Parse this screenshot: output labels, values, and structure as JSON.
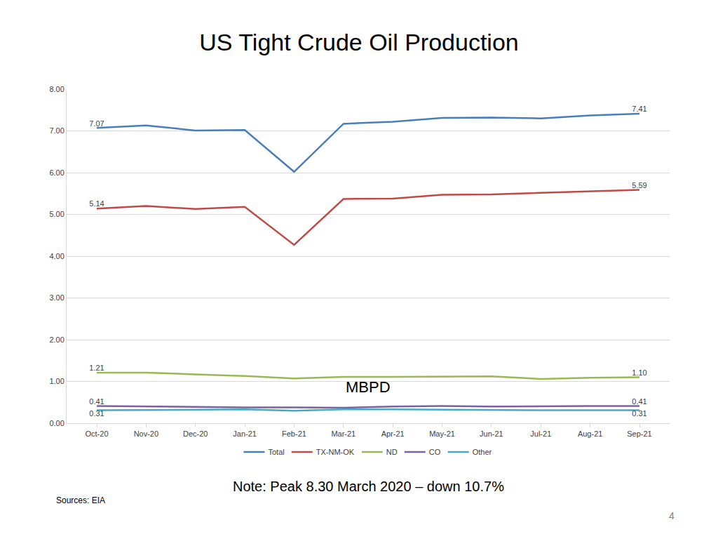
{
  "chart_data": {
    "type": "line",
    "title": "US Tight Crude Oil Production",
    "subtitle": "MBPD",
    "annotations": [
      "Note: Peak 8.30 March 2020 – down 10.7%",
      "Sources: EIA",
      "4"
    ],
    "categories": [
      "Oct-20",
      "Nov-20",
      "Dec-20",
      "Jan-21",
      "Feb-21",
      "Mar-21",
      "Apr-21",
      "May-21",
      "Jun-21",
      "Jul-21",
      "Aug-21",
      "Sep-21"
    ],
    "series": [
      {
        "name": "Total",
        "color": "#4a7ebb",
        "values": [
          7.07,
          7.13,
          7.01,
          7.02,
          6.02,
          7.17,
          7.22,
          7.31,
          7.32,
          7.3,
          7.37,
          7.41
        ],
        "value_labels": [
          "7.07",
          null,
          null,
          null,
          null,
          null,
          null,
          null,
          null,
          null,
          null,
          "7.41"
        ]
      },
      {
        "name": "TX-NM-OK",
        "color": "#be4b48",
        "values": [
          5.14,
          5.2,
          5.13,
          5.18,
          4.27,
          5.37,
          5.38,
          5.47,
          5.48,
          5.52,
          5.56,
          5.59
        ],
        "value_labels": [
          "5.14",
          null,
          null,
          null,
          null,
          null,
          null,
          null,
          null,
          null,
          null,
          "5.59"
        ]
      },
      {
        "name": "ND",
        "color": "#98b954",
        "values": [
          1.21,
          1.21,
          1.17,
          1.13,
          1.07,
          1.11,
          1.11,
          1.11,
          1.12,
          1.06,
          1.09,
          1.1
        ],
        "value_labels": [
          "1.21",
          null,
          null,
          null,
          null,
          null,
          null,
          null,
          null,
          null,
          null,
          "1.10"
        ]
      },
      {
        "name": "CO",
        "color": "#7d60a0",
        "values": [
          0.41,
          0.4,
          0.38,
          0.38,
          0.38,
          0.37,
          0.4,
          0.41,
          0.4,
          0.41,
          0.41,
          0.41
        ],
        "value_labels": [
          "0.41",
          null,
          null,
          null,
          null,
          null,
          null,
          null,
          null,
          null,
          null,
          "0.41"
        ]
      },
      {
        "name": "Other",
        "color": "#46aac5",
        "values": [
          0.31,
          0.32,
          0.33,
          0.33,
          0.3,
          0.33,
          0.33,
          0.32,
          0.32,
          0.31,
          0.31,
          0.31
        ],
        "value_labels": [
          "0.31",
          null,
          null,
          null,
          null,
          null,
          null,
          null,
          null,
          null,
          null,
          "0.31"
        ]
      }
    ],
    "ylim": [
      0,
      8
    ],
    "yticks": [
      {
        "value": 0,
        "label": "0.00"
      },
      {
        "value": 1,
        "label": "1.00"
      },
      {
        "value": 2,
        "label": "2.00"
      },
      {
        "value": 3,
        "label": "3.00"
      },
      {
        "value": 4,
        "label": "4.00"
      },
      {
        "value": 5,
        "label": "5.00"
      },
      {
        "value": 6,
        "label": "6.00"
      },
      {
        "value": 7,
        "label": "7.00"
      },
      {
        "value": 8,
        "label": "8.00"
      }
    ],
    "grid": true,
    "legend": "bottom",
    "data_labels": true
  }
}
